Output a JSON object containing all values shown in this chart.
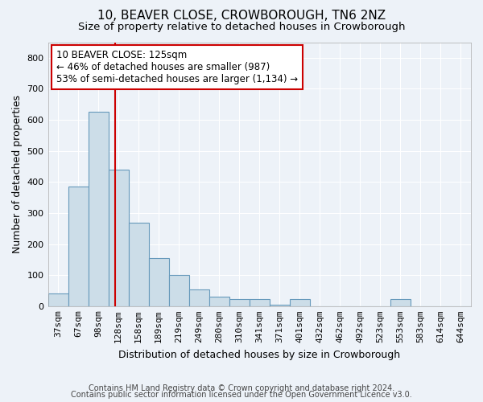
{
  "title": "10, BEAVER CLOSE, CROWBOROUGH, TN6 2NZ",
  "subtitle": "Size of property relative to detached houses in Crowborough",
  "xlabel": "Distribution of detached houses by size in Crowborough",
  "ylabel": "Number of detached properties",
  "categories": [
    "37sqm",
    "67sqm",
    "98sqm",
    "128sqm",
    "158sqm",
    "189sqm",
    "219sqm",
    "249sqm",
    "280sqm",
    "310sqm",
    "341sqm",
    "371sqm",
    "401sqm",
    "432sqm",
    "462sqm",
    "492sqm",
    "523sqm",
    "553sqm",
    "583sqm",
    "614sqm",
    "644sqm"
  ],
  "bar_values": [
    40,
    385,
    625,
    440,
    270,
    155,
    100,
    55,
    30,
    22,
    22,
    5,
    22,
    0,
    0,
    0,
    0,
    22,
    0,
    0,
    0
  ],
  "bar_color": "#ccdde8",
  "bar_edge_color": "#6699bb",
  "vline_color": "#cc0000",
  "annotation_text": "10 BEAVER CLOSE: 125sqm\n← 46% of detached houses are smaller (987)\n53% of semi-detached houses are larger (1,134) →",
  "annotation_box_color": "#ffffff",
  "annotation_box_edge": "#cc0000",
  "ylim": [
    0,
    850
  ],
  "yticks": [
    0,
    100,
    200,
    300,
    400,
    500,
    600,
    700,
    800
  ],
  "footer1": "Contains HM Land Registry data © Crown copyright and database right 2024.",
  "footer2": "Contains public sector information licensed under the Open Government Licence v3.0.",
  "bg_color": "#edf2f8",
  "plot_bg_color": "#edf2f8",
  "grid_color": "#ffffff",
  "title_fontsize": 11,
  "subtitle_fontsize": 9.5,
  "axis_label_fontsize": 9,
  "tick_fontsize": 8,
  "footer_fontsize": 7,
  "annotation_fontsize": 8.5
}
